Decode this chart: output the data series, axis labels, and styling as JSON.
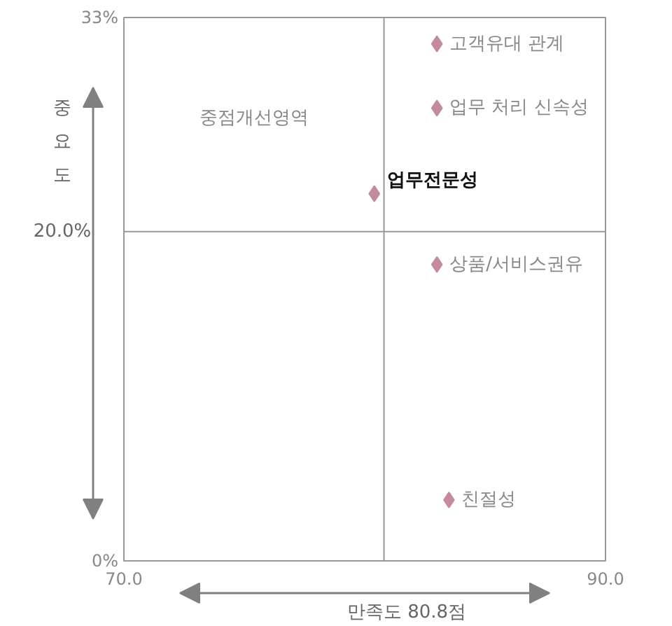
{
  "chart_data": {
    "type": "scatter",
    "xlabel": "만족도 80.8점",
    "ylabel": "중요도 20.0%",
    "marker": "diamond",
    "xlim": [
      70,
      90
    ],
    "ylim": [
      0,
      33
    ],
    "xticks": [
      {
        "value": 70,
        "label": "70.0"
      },
      {
        "value": 90,
        "label": "90.0"
      }
    ],
    "yticks": [
      {
        "value": 0,
        "label": "0%"
      },
      {
        "value": 33,
        "label": "33%"
      }
    ],
    "series": [
      {
        "name": "고객유대 관계",
        "color": "#c48a9e",
        "x": [
          83.0
        ],
        "values": [
          31.4
        ]
      },
      {
        "name": "업무 처리 신속성",
        "color": "#c48a9e",
        "x": [
          83.0
        ],
        "values": [
          27.5
        ]
      },
      {
        "name": "업무전문성",
        "color": "#c48a9e",
        "x": [
          80.4
        ],
        "values": [
          22.3
        ]
      },
      {
        "name": "상품/서비스권유",
        "color": "#c48a9e",
        "x": [
          83.0
        ],
        "values": [
          18.0
        ]
      },
      {
        "name": "친절성",
        "color": "#c48a9e",
        "x": [
          83.5
        ],
        "values": [
          3.7
        ]
      }
    ],
    "ref_lines": [
      {
        "axis": "x",
        "value": 80.8,
        "color": "#999999"
      },
      {
        "axis": "y",
        "value": 20.0,
        "color": "#999999"
      }
    ],
    "annotations": [
      "중점개선영역"
    ]
  }
}
